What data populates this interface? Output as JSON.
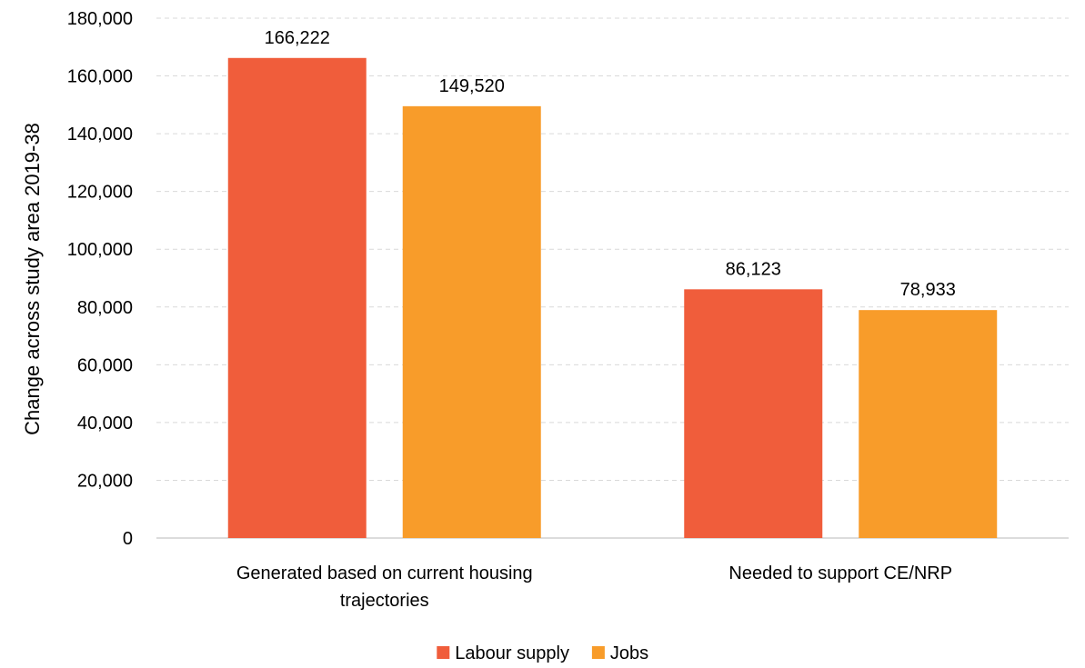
{
  "chart_data": {
    "type": "bar",
    "categories": [
      "Generated based on current housing trajectories",
      "Needed to support CE/NRP"
    ],
    "category_lines": [
      [
        "Generated based on current housing",
        "trajectories"
      ],
      [
        "Needed to support CE/NRP"
      ]
    ],
    "series": [
      {
        "name": "Labour supply",
        "color": "#f05d3b",
        "values": [
          166222,
          86123
        ],
        "labels": [
          "166,222",
          "86,123"
        ]
      },
      {
        "name": "Jobs",
        "color": "#f89c2a",
        "values": [
          149520,
          78933
        ],
        "labels": [
          "149,520",
          "78,933"
        ]
      }
    ],
    "ylabel": "Change across study area 2019-38",
    "ylim": [
      0,
      180000
    ],
    "yticks": [
      0,
      20000,
      40000,
      60000,
      80000,
      100000,
      120000,
      140000,
      160000,
      180000
    ],
    "ytick_labels": [
      "0",
      "20,000",
      "40,000",
      "60,000",
      "80,000",
      "100,000",
      "120,000",
      "140,000",
      "160,000",
      "180,000"
    ],
    "grid": true,
    "legend_position": "bottom"
  }
}
